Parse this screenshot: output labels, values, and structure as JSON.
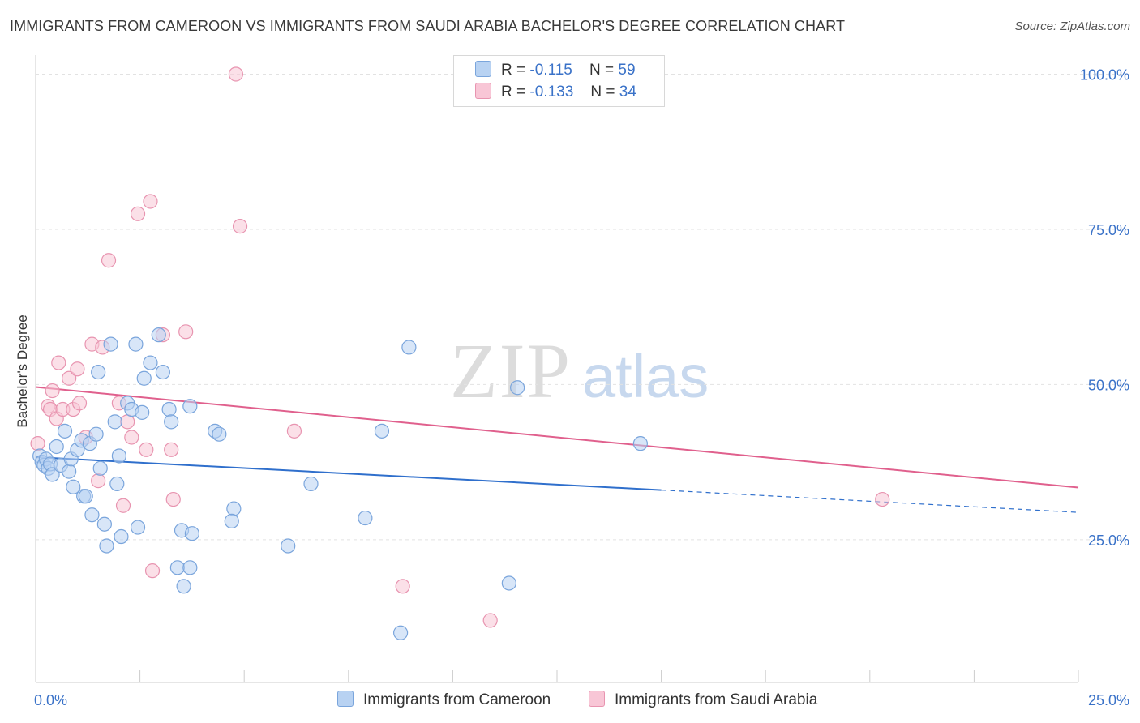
{
  "title": "IMMIGRANTS FROM CAMEROON VS IMMIGRANTS FROM SAUDI ARABIA BACHELOR'S DEGREE CORRELATION CHART",
  "source": "Source: ZipAtlas.com",
  "watermark": {
    "zip": "ZIP",
    "atlas": "atlas"
  },
  "legend": {
    "series1": {
      "r_label": "R =",
      "r_value": "-0.115",
      "n_label": "N =",
      "n_value": "59"
    },
    "series2": {
      "r_label": "R =",
      "r_value": "-0.133",
      "n_label": "N =",
      "n_value": "34"
    }
  },
  "colors": {
    "blue_fill": "#b8d2f2",
    "blue_stroke": "#7aa5dc",
    "blue_line": "#2f6fcc",
    "pink_fill": "#f8c6d6",
    "pink_stroke": "#e894b0",
    "pink_line": "#e0608d",
    "tick_text": "#3a72c8",
    "grid": "#e2e2e2"
  },
  "chart_data": {
    "type": "scatter",
    "title": "IMMIGRANTS FROM CAMEROON VS IMMIGRANTS FROM SAUDI ARABIA BACHELOR'S DEGREE CORRELATION CHART",
    "xlabel": "",
    "ylabel": "Bachelor's Degree",
    "xlim": [
      0,
      25
    ],
    "ylim": [
      2,
      103
    ],
    "x_tick_labels": {
      "min": "0.0%",
      "max": "25.0%"
    },
    "y_ticks": [
      {
        "value": 25,
        "label": "25.0%"
      },
      {
        "value": 50,
        "label": "50.0%"
      },
      {
        "value": 75,
        "label": "75.0%"
      },
      {
        "value": 100,
        "label": "100.0%"
      }
    ],
    "grid": true,
    "series": [
      {
        "name": "Immigrants from Cameroon",
        "color": "blue",
        "points": [
          [
            0.1,
            38.5
          ],
          [
            0.15,
            37.5
          ],
          [
            0.2,
            37
          ],
          [
            0.25,
            38
          ],
          [
            0.3,
            36.5
          ],
          [
            0.35,
            37.2
          ],
          [
            0.4,
            35.5
          ],
          [
            0.5,
            40
          ],
          [
            0.6,
            37
          ],
          [
            0.7,
            42.5
          ],
          [
            0.8,
            36
          ],
          [
            0.85,
            38
          ],
          [
            0.9,
            33.5
          ],
          [
            1.0,
            39.5
          ],
          [
            1.1,
            41
          ],
          [
            1.15,
            32
          ],
          [
            1.2,
            32
          ],
          [
            1.3,
            40.5
          ],
          [
            1.35,
            29
          ],
          [
            1.45,
            42
          ],
          [
            1.5,
            52
          ],
          [
            1.55,
            36.5
          ],
          [
            1.65,
            27.5
          ],
          [
            1.7,
            24
          ],
          [
            1.8,
            56.5
          ],
          [
            1.9,
            44
          ],
          [
            1.95,
            34
          ],
          [
            2.0,
            38.5
          ],
          [
            2.05,
            25.5
          ],
          [
            2.2,
            47
          ],
          [
            2.3,
            46
          ],
          [
            2.4,
            56.5
          ],
          [
            2.45,
            27
          ],
          [
            2.55,
            45.5
          ],
          [
            2.6,
            51
          ],
          [
            2.75,
            53.5
          ],
          [
            2.95,
            58
          ],
          [
            3.05,
            52
          ],
          [
            3.2,
            46
          ],
          [
            3.25,
            44
          ],
          [
            3.4,
            20.5
          ],
          [
            3.5,
            26.5
          ],
          [
            3.55,
            17.5
          ],
          [
            3.7,
            20.5
          ],
          [
            3.7,
            46.5
          ],
          [
            3.75,
            26
          ],
          [
            4.3,
            42.5
          ],
          [
            4.4,
            42
          ],
          [
            4.75,
            30
          ],
          [
            4.7,
            28
          ],
          [
            6.05,
            24
          ],
          [
            6.6,
            34
          ],
          [
            7.9,
            28.5
          ],
          [
            8.3,
            42.5
          ],
          [
            8.75,
            10
          ],
          [
            8.95,
            56
          ],
          [
            11.35,
            18
          ],
          [
            11.55,
            49.5
          ],
          [
            14.5,
            40.5
          ]
        ],
        "trend": {
          "x0": 0,
          "y0": 38.3,
          "x1": 15,
          "y1": 33.0,
          "dash_x1": 25,
          "dash_y1": 29.4
        }
      },
      {
        "name": "Immigrants from Saudi Arabia",
        "color": "pink",
        "points": [
          [
            0.05,
            40.5
          ],
          [
            0.3,
            46.5
          ],
          [
            0.35,
            46
          ],
          [
            0.4,
            49
          ],
          [
            0.5,
            44.5
          ],
          [
            0.55,
            53.5
          ],
          [
            0.65,
            46
          ],
          [
            0.8,
            51
          ],
          [
            0.9,
            46
          ],
          [
            1.0,
            52.5
          ],
          [
            1.05,
            47
          ],
          [
            1.2,
            41.5
          ],
          [
            1.35,
            56.5
          ],
          [
            1.5,
            34.5
          ],
          [
            1.6,
            56
          ],
          [
            1.75,
            70
          ],
          [
            2.0,
            47
          ],
          [
            2.1,
            30.5
          ],
          [
            2.2,
            44
          ],
          [
            2.3,
            41.5
          ],
          [
            2.45,
            77.5
          ],
          [
            2.65,
            39.5
          ],
          [
            2.75,
            79.5
          ],
          [
            2.8,
            20
          ],
          [
            3.05,
            58
          ],
          [
            3.25,
            39.5
          ],
          [
            3.3,
            31.5
          ],
          [
            3.6,
            58.5
          ],
          [
            4.8,
            100
          ],
          [
            4.9,
            75.5
          ],
          [
            6.2,
            42.5
          ],
          [
            8.8,
            17.5
          ],
          [
            10.9,
            12
          ],
          [
            20.3,
            31.5
          ]
        ],
        "trend": {
          "x0": 0,
          "y0": 49.6,
          "x1": 25,
          "y1": 33.4
        }
      }
    ]
  },
  "bottom_legend": {
    "series1_label": "Immigrants from Cameroon",
    "series2_label": "Immigrants from Saudi Arabia"
  }
}
